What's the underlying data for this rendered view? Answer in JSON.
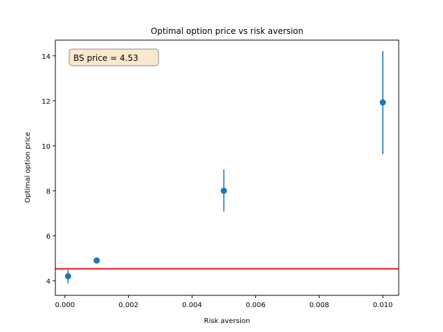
{
  "chart_data": {
    "type": "scatter",
    "title": "Optimal option price vs risk aversion",
    "xlabel": "Risk aversion",
    "ylabel": "Optimal option price",
    "xlim": [
      -0.0003,
      0.0105
    ],
    "ylim": [
      3.35,
      14.7
    ],
    "xticks": [
      0.0,
      0.002,
      0.004,
      0.006,
      0.008,
      0.01
    ],
    "xtick_labels": [
      "0.000",
      "0.002",
      "0.004",
      "0.006",
      "0.008",
      "0.010"
    ],
    "yticks": [
      4,
      6,
      8,
      10,
      12,
      14
    ],
    "ytick_labels": [
      "4",
      "6",
      "8",
      "10",
      "12",
      "14"
    ],
    "grid": false,
    "series": [
      {
        "x": [
          0.0001,
          0.001,
          0.005,
          0.01
        ],
        "y": [
          4.2,
          4.9,
          8.0,
          11.93
        ],
        "yerr_low": [
          3.88,
          4.87,
          7.08,
          9.63
        ],
        "yerr_high": [
          4.48,
          4.93,
          8.95,
          14.22
        ],
        "color": "#1f77b4"
      }
    ],
    "hline": {
      "y": 4.53,
      "color": "#ee1111"
    },
    "annotation": {
      "text": "BS price = 4.53",
      "position": "top-left",
      "background": "#fbe8cc",
      "border": "#8a8a8a"
    }
  }
}
